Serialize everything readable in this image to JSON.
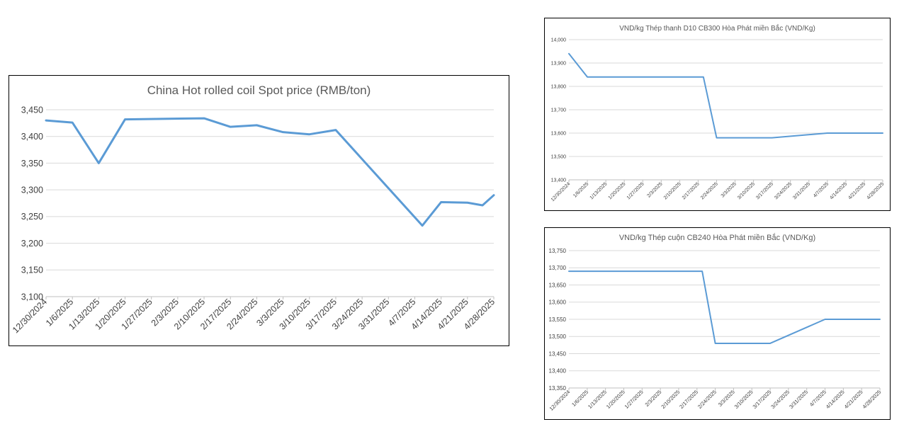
{
  "charts": [
    {
      "chart_data": {
        "type": "line",
        "title": "China Hot rolled coil Spot price (RMB/ton)",
        "xlabel": "",
        "ylabel": "",
        "ylim": [
          3100,
          3450
        ],
        "yticks": [
          "3,100",
          "3,150",
          "3,200",
          "3,250",
          "3,300",
          "3,350",
          "3,400",
          "3,450"
        ],
        "categories": [
          "12/30/2024",
          "1/6/2025",
          "1/13/2025",
          "1/20/2025",
          "1/27/2025",
          "2/3/2025",
          "2/10/2025",
          "2/17/2025",
          "2/24/2025",
          "3/3/2025",
          "3/10/2025",
          "3/17/2025",
          "3/24/2025",
          "3/31/2025",
          "4/7/2025",
          "4/14/2025",
          "4/21/2025",
          "4/28/2025"
        ],
        "series": [
          {
            "color": "#5b9bd5",
            "points": [
              [
                "12/30/2024",
                3430
              ],
              [
                "1/6/2025",
                3426
              ],
              [
                "1/13/2025",
                3350
              ],
              [
                "1/20/2025",
                3432
              ],
              [
                "2/10/2025",
                3434
              ],
              [
                "2/17/2025",
                3418
              ],
              [
                "2/24/2025",
                3421
              ],
              [
                "3/3/2025",
                3408
              ],
              [
                "3/10/2025",
                3404
              ],
              [
                "3/17/2025",
                3412
              ],
              [
                "4/9/2025",
                3233
              ],
              [
                "4/14/2025",
                3277
              ],
              [
                "4/21/2025",
                3276
              ],
              [
                "4/25/2025",
                3271
              ],
              [
                "4/28/2025",
                3290
              ]
            ]
          }
        ],
        "grid": true,
        "legend": "none"
      }
    },
    {
      "chart_data": {
        "type": "line",
        "title": "VND/kg Thép thanh D10 CB300 Hòa Phát miền Bắc (VND/Kg)",
        "xlabel": "",
        "ylabel": "",
        "ylim": [
          13400,
          14000
        ],
        "yticks": [
          "13,400",
          "13,500",
          "13,600",
          "13,700",
          "13,800",
          "13,900",
          "14,000"
        ],
        "categories": [
          "12/30/2024",
          "1/6/2025",
          "1/13/2025",
          "1/20/2025",
          "1/27/2025",
          "2/3/2025",
          "2/10/2025",
          "2/17/2025",
          "2/24/2025",
          "3/3/2025",
          "3/10/2025",
          "3/17/2025",
          "3/24/2025",
          "3/31/2025",
          "4/7/2025",
          "4/14/2025",
          "4/21/2025",
          "4/28/2025"
        ],
        "series": [
          {
            "color": "#5b9bd5",
            "points": [
              [
                "12/30/2024",
                13940
              ],
              [
                "1/6/2025",
                13840
              ],
              [
                "2/19/2025",
                13840
              ],
              [
                "2/24/2025",
                13580
              ],
              [
                "3/17/2025",
                13580
              ],
              [
                "4/7/2025",
                13600
              ],
              [
                "4/28/2025",
                13600
              ]
            ]
          }
        ],
        "grid": true,
        "legend": "none"
      }
    },
    {
      "chart_data": {
        "type": "line",
        "title": "VND/kg Thép cuộn CB240 Hòa Phát miền Bắc (VND/Kg)",
        "xlabel": "",
        "ylabel": "",
        "ylim": [
          13350,
          13750
        ],
        "yticks": [
          "13,350",
          "13,400",
          "13,450",
          "13,500",
          "13,550",
          "13,600",
          "13,650",
          "13,700",
          "13,750"
        ],
        "categories": [
          "12/30/2024",
          "1/6/2025",
          "1/13/2025",
          "1/20/2025",
          "1/27/2025",
          "2/3/2025",
          "2/10/2025",
          "2/17/2025",
          "2/24/2025",
          "3/3/2025",
          "3/10/2025",
          "3/17/2025",
          "3/24/2025",
          "3/31/2025",
          "4/7/2025",
          "4/14/2025",
          "4/21/2025",
          "4/28/2025"
        ],
        "series": [
          {
            "color": "#5b9bd5",
            "points": [
              [
                "12/30/2024",
                13690
              ],
              [
                "2/19/2025",
                13690
              ],
              [
                "2/24/2025",
                13480
              ],
              [
                "3/17/2025",
                13480
              ],
              [
                "4/7/2025",
                13550
              ],
              [
                "4/28/2025",
                13550
              ]
            ]
          }
        ],
        "grid": true,
        "legend": "none"
      }
    }
  ]
}
